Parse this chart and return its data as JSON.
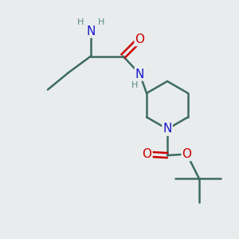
{
  "bg_color": "#e8ecec",
  "bond_color": "#3d6b60",
  "bond_width": 1.8,
  "N_color": "#1a1acc",
  "O_color": "#cc0000",
  "H_color": "#5a8a80",
  "font_size_atom": 10,
  "font_size_H": 8,
  "fig_w": 3.0,
  "fig_h": 3.0,
  "dpi": 100,
  "xlim": [
    0,
    10
  ],
  "ylim": [
    0,
    10
  ]
}
